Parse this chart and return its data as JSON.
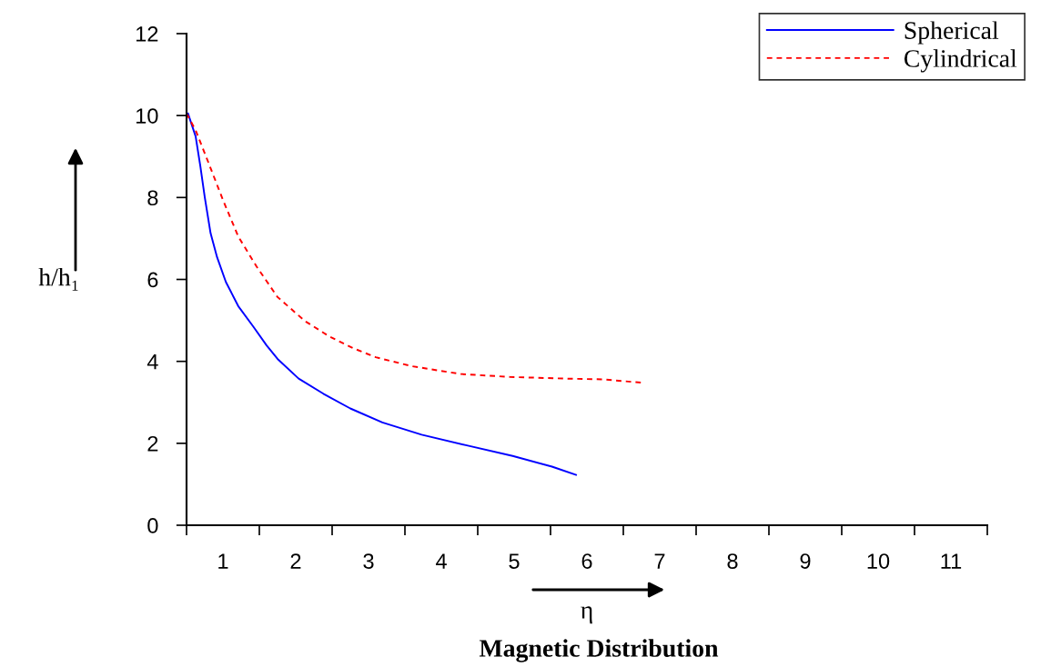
{
  "chart_data": {
    "type": "line",
    "xlabel": "η",
    "ylabel": "h/h₁",
    "annotations": [
      "Magnetic Distribution"
    ],
    "xlim": [
      0.5,
      11.5
    ],
    "xticks": [
      {
        "value": 0.5,
        "label": null
      },
      {
        "value": 1,
        "label": "1"
      },
      {
        "value": 1.5,
        "label": null
      },
      {
        "value": 2,
        "label": "2"
      },
      {
        "value": 2.5,
        "label": null
      },
      {
        "value": 3,
        "label": "3"
      },
      {
        "value": 3.5,
        "label": null
      },
      {
        "value": 4,
        "label": "4"
      },
      {
        "value": 4.5,
        "label": null
      },
      {
        "value": 5,
        "label": "5"
      },
      {
        "value": 5.5,
        "label": null
      },
      {
        "value": 6,
        "label": "6"
      },
      {
        "value": 6.5,
        "label": null
      },
      {
        "value": 7,
        "label": "7"
      },
      {
        "value": 7.5,
        "label": null
      },
      {
        "value": 8,
        "label": "8"
      },
      {
        "value": 8.5,
        "label": null
      },
      {
        "value": 9,
        "label": "9"
      },
      {
        "value": 9.5,
        "label": null
      },
      {
        "value": 10,
        "label": "10"
      },
      {
        "value": 10.5,
        "label": null
      },
      {
        "value": 11,
        "label": "11"
      },
      {
        "value": 11.5,
        "label": null
      }
    ],
    "ylim": [
      0,
      12
    ],
    "yticks": [
      0,
      2,
      4,
      6,
      8,
      10,
      12
    ],
    "legend": "top right",
    "grid": false,
    "series": [
      {
        "name": "Spherical",
        "color": "#0000ff",
        "line_style": "solid",
        "x": [
          0.52,
          0.625,
          0.69,
          0.75,
          0.83,
          0.92,
          1.04,
          1.21,
          1.42,
          1.6,
          1.75,
          2.04,
          2.38,
          2.75,
          3.19,
          3.73,
          4.35,
          4.98,
          5.52,
          5.85
        ],
        "values": [
          10.05,
          9.49,
          8.76,
          8.01,
          7.13,
          6.54,
          5.94,
          5.35,
          4.84,
          4.39,
          4.06,
          3.58,
          3.21,
          2.85,
          2.51,
          2.21,
          1.95,
          1.69,
          1.43,
          1.23
        ]
      },
      {
        "name": "Cylindrical",
        "color": "#ff0000",
        "line_style": "dashed",
        "x": [
          0.5,
          0.625,
          0.79,
          1.0,
          1.21,
          1.46,
          1.75,
          2.13,
          2.46,
          2.79,
          3.1,
          3.6,
          4.27,
          4.94,
          5.69,
          6.23,
          6.75
        ],
        "values": [
          10.05,
          9.64,
          8.9,
          7.94,
          7.05,
          6.32,
          5.57,
          4.98,
          4.61,
          4.32,
          4.1,
          3.88,
          3.69,
          3.62,
          3.58,
          3.56,
          3.48
        ]
      }
    ]
  }
}
